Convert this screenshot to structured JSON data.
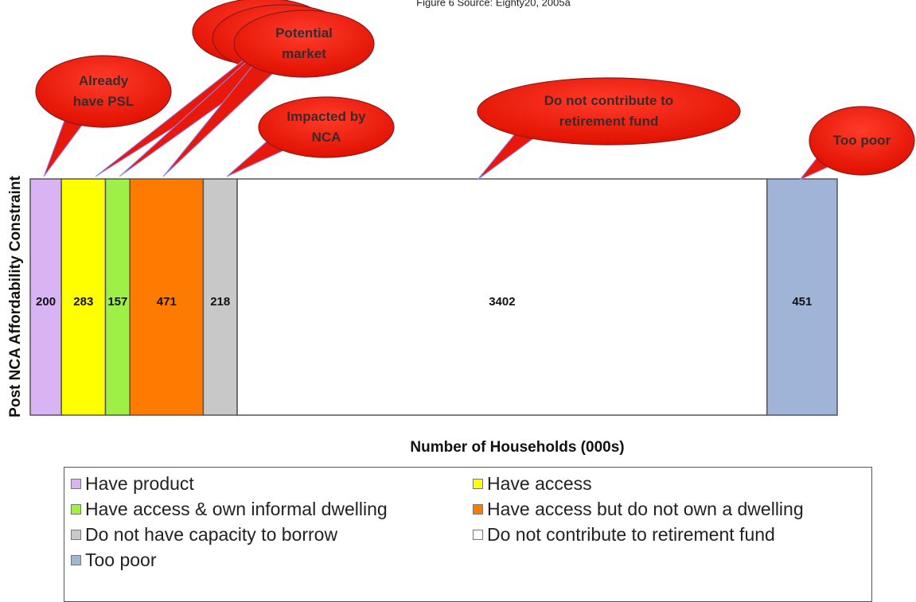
{
  "chart_data": {
    "type": "stacked-bar-horizontal",
    "title": "Figure 6 Source: Eighty20, 2005a",
    "x_label": "Number of Households (000s)",
    "y_label": "Post NCA Affordability Constraint",
    "xlim": [
      0,
      5182
    ],
    "series": [
      {
        "name": "Have product",
        "color": "#d8b4f4",
        "values": [
          200
        ]
      },
      {
        "name": "Have access",
        "color": "#ffff00",
        "values": [
          283
        ]
      },
      {
        "name": "Have access & own informal dwelling",
        "color": "#9ef046",
        "values": [
          157
        ]
      },
      {
        "name": "Have access but do not own a dwelling",
        "color": "#ff7a00",
        "values": [
          471
        ]
      },
      {
        "name": "Do not have capacity to borrow",
        "color": "#c8c8c8",
        "values": [
          218
        ]
      },
      {
        "name": "Do not contribute to retirement fund",
        "color": "#ffffff",
        "values": [
          3402
        ]
      },
      {
        "name": "Too poor",
        "color": "#a0b4d8",
        "values": [
          451
        ]
      }
    ],
    "annotations": [
      "Already have PSL",
      "Potential market",
      "Impacted by NCA",
      "Do not contribute to retirement fund",
      "Too poor"
    ]
  }
}
